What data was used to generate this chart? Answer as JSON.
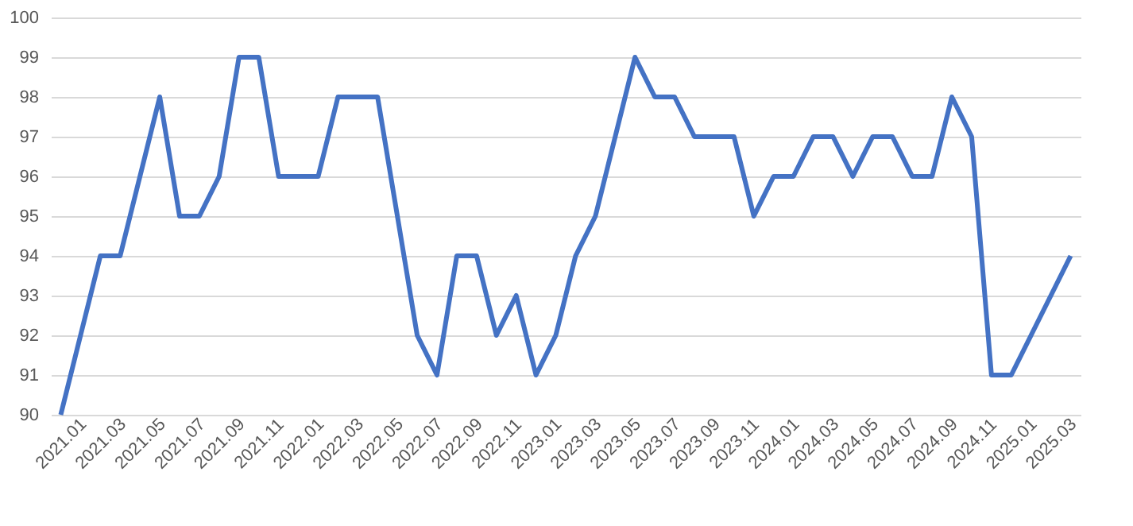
{
  "chart_data": {
    "type": "line",
    "categories": [
      "2021.01",
      null,
      "2021.03",
      null,
      "2021.05",
      null,
      "2021.07",
      null,
      "2021.09",
      null,
      "2021.11",
      null,
      "2022.01",
      null,
      "2022.03",
      null,
      "2022.05",
      null,
      "2022.07",
      null,
      "2022.09",
      null,
      "2022.11",
      null,
      "2023.01",
      null,
      "2023.03",
      null,
      "2023.05",
      null,
      "2023.07",
      null,
      "2023.09",
      null,
      "2023.11",
      null,
      "2024.01",
      null,
      "2024.03",
      null,
      "2024.05",
      null,
      "2024.07",
      null,
      "2024.09",
      null,
      "2024.11",
      null,
      "2025.01",
      null,
      "2025.03",
      null
    ],
    "series": [
      {
        "color": "#4472c4",
        "values": [
          90,
          92,
          94,
          94,
          96,
          98,
          95,
          95,
          96,
          99,
          99,
          96,
          96,
          96,
          98,
          98,
          98,
          95,
          92,
          91,
          94,
          94,
          92,
          93,
          91,
          92,
          94,
          95,
          97,
          99,
          98,
          98,
          97,
          97,
          97,
          95,
          96,
          96,
          97,
          97,
          96,
          97,
          97,
          96,
          96,
          98,
          97,
          91,
          91,
          92,
          93,
          94
        ]
      }
    ],
    "ylim": [
      90,
      100
    ],
    "yticks": [
      90,
      91,
      92,
      93,
      94,
      95,
      96,
      97,
      98,
      99,
      100
    ],
    "grid": "y",
    "legend": false,
    "marker": "none",
    "line_style": "solid"
  }
}
